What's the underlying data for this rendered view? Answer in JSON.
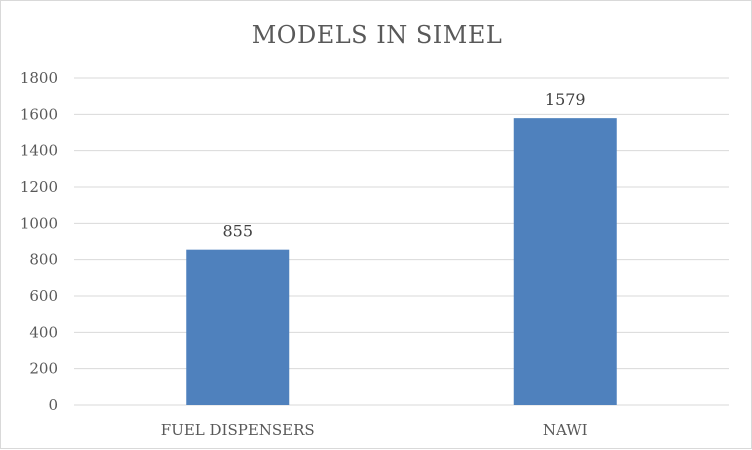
{
  "chart_data": {
    "type": "bar",
    "title": "MODELS IN SIMEL",
    "xlabel": "",
    "ylabel": "",
    "categories": [
      "FUEL DISPENSERS",
      "NAWI"
    ],
    "values": [
      855,
      1579
    ],
    "data_labels": [
      "855",
      "1579"
    ],
    "yticks": [
      "0",
      "200",
      "400",
      "600",
      "800",
      "1000",
      "1200",
      "1400",
      "1600",
      "1800"
    ],
    "ylim": [
      0,
      1800
    ],
    "grid": true,
    "legend": "none",
    "bar_color": "#4f81bd",
    "grid_color": "#d9d9d9"
  }
}
